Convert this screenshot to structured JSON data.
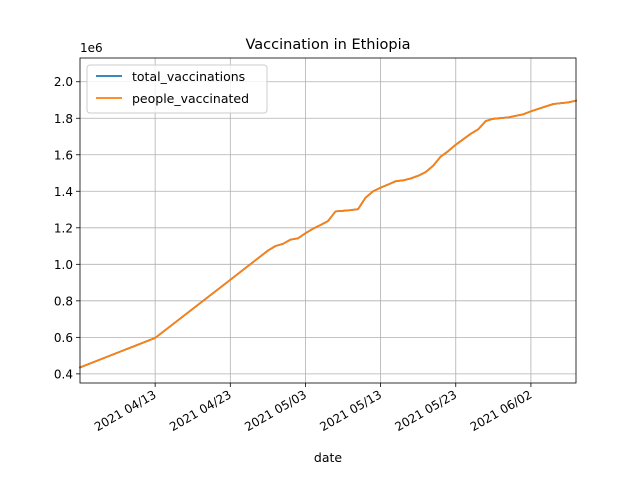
{
  "chart_data": {
    "type": "line",
    "title": "Vaccination in Ethiopia",
    "xlabel": "date",
    "ylabel": "",
    "y_offset_label": "1e6",
    "x_range": [
      "2021-04-03",
      "2021-06-08"
    ],
    "ylim": [
      0.35,
      2.13
    ],
    "y_scale": 1000000,
    "x_ticks": [
      {
        "date": "2021-04-13",
        "label": "2021 04/13"
      },
      {
        "date": "2021-04-23",
        "label": "2021 04/23"
      },
      {
        "date": "2021-05-03",
        "label": "2021 05/03"
      },
      {
        "date": "2021-05-13",
        "label": "2021 05/13"
      },
      {
        "date": "2021-05-23",
        "label": "2021 05/23"
      },
      {
        "date": "2021-06-02",
        "label": "2021 06/02"
      }
    ],
    "y_ticks": [
      {
        "value": 0.4,
        "label": "0.4"
      },
      {
        "value": 0.6,
        "label": "0.6"
      },
      {
        "value": 0.8,
        "label": "0.8"
      },
      {
        "value": 1.0,
        "label": "1.0"
      },
      {
        "value": 1.2,
        "label": "1.2"
      },
      {
        "value": 1.4,
        "label": "1.4"
      },
      {
        "value": 1.6,
        "label": "1.6"
      },
      {
        "value": 1.8,
        "label": "1.8"
      },
      {
        "value": 2.0,
        "label": "2.0"
      }
    ],
    "grid": true,
    "legend_position": "top-left",
    "series": [
      {
        "name": "total_vaccinations",
        "color": "#1f77b4",
        "points": [
          [
            "2021-04-03",
            0.435
          ],
          [
            "2021-04-13",
            0.597
          ],
          [
            "2021-04-23",
            0.915
          ],
          [
            "2021-04-28",
            1.075
          ],
          [
            "2021-04-29",
            1.1
          ],
          [
            "2021-04-30",
            1.112
          ],
          [
            "2021-05-01",
            1.135
          ],
          [
            "2021-05-02",
            1.142
          ],
          [
            "2021-05-03",
            1.17
          ],
          [
            "2021-05-04",
            1.195
          ],
          [
            "2021-05-05",
            1.215
          ],
          [
            "2021-05-06",
            1.237
          ],
          [
            "2021-05-07",
            1.29
          ],
          [
            "2021-05-08",
            1.293
          ],
          [
            "2021-05-09",
            1.297
          ],
          [
            "2021-05-10",
            1.302
          ],
          [
            "2021-05-11",
            1.365
          ],
          [
            "2021-05-12",
            1.4
          ],
          [
            "2021-05-13",
            1.42
          ],
          [
            "2021-05-14",
            1.437
          ],
          [
            "2021-05-15",
            1.455
          ],
          [
            "2021-05-16",
            1.46
          ],
          [
            "2021-05-17",
            1.47
          ],
          [
            "2021-05-18",
            1.485
          ],
          [
            "2021-05-19",
            1.505
          ],
          [
            "2021-05-20",
            1.54
          ],
          [
            "2021-05-21",
            1.59
          ],
          [
            "2021-05-22",
            1.62
          ],
          [
            "2021-05-23",
            1.655
          ],
          [
            "2021-05-24",
            1.685
          ],
          [
            "2021-05-25",
            1.715
          ],
          [
            "2021-05-26",
            1.74
          ],
          [
            "2021-05-27",
            1.785
          ],
          [
            "2021-05-28",
            1.797
          ],
          [
            "2021-05-30",
            1.805
          ],
          [
            "2021-06-01",
            1.822
          ],
          [
            "2021-06-02",
            1.838
          ],
          [
            "2021-06-04",
            1.865
          ],
          [
            "2021-06-05",
            1.878
          ],
          [
            "2021-06-07",
            1.887
          ],
          [
            "2021-06-08",
            1.896
          ]
        ]
      },
      {
        "name": "people_vaccinated",
        "color": "#ff7f0e",
        "points": [
          [
            "2021-04-03",
            0.435
          ],
          [
            "2021-04-13",
            0.597
          ],
          [
            "2021-04-23",
            0.915
          ],
          [
            "2021-04-28",
            1.075
          ],
          [
            "2021-04-29",
            1.1
          ],
          [
            "2021-04-30",
            1.112
          ],
          [
            "2021-05-01",
            1.135
          ],
          [
            "2021-05-02",
            1.142
          ],
          [
            "2021-05-03",
            1.17
          ],
          [
            "2021-05-04",
            1.195
          ],
          [
            "2021-05-05",
            1.215
          ],
          [
            "2021-05-06",
            1.237
          ],
          [
            "2021-05-07",
            1.29
          ],
          [
            "2021-05-08",
            1.293
          ],
          [
            "2021-05-09",
            1.297
          ],
          [
            "2021-05-10",
            1.302
          ],
          [
            "2021-05-11",
            1.365
          ],
          [
            "2021-05-12",
            1.4
          ],
          [
            "2021-05-13",
            1.42
          ],
          [
            "2021-05-14",
            1.437
          ],
          [
            "2021-05-15",
            1.455
          ],
          [
            "2021-05-16",
            1.46
          ],
          [
            "2021-05-17",
            1.47
          ],
          [
            "2021-05-18",
            1.485
          ],
          [
            "2021-05-19",
            1.505
          ],
          [
            "2021-05-20",
            1.54
          ],
          [
            "2021-05-21",
            1.59
          ],
          [
            "2021-05-22",
            1.62
          ],
          [
            "2021-05-23",
            1.655
          ],
          [
            "2021-05-24",
            1.685
          ],
          [
            "2021-05-25",
            1.715
          ],
          [
            "2021-05-26",
            1.74
          ],
          [
            "2021-05-27",
            1.785
          ],
          [
            "2021-05-28",
            1.797
          ],
          [
            "2021-05-30",
            1.805
          ],
          [
            "2021-06-01",
            1.822
          ],
          [
            "2021-06-02",
            1.838
          ],
          [
            "2021-06-04",
            1.865
          ],
          [
            "2021-06-05",
            1.878
          ],
          [
            "2021-06-07",
            1.887
          ],
          [
            "2021-06-08",
            1.896
          ]
        ]
      }
    ]
  }
}
